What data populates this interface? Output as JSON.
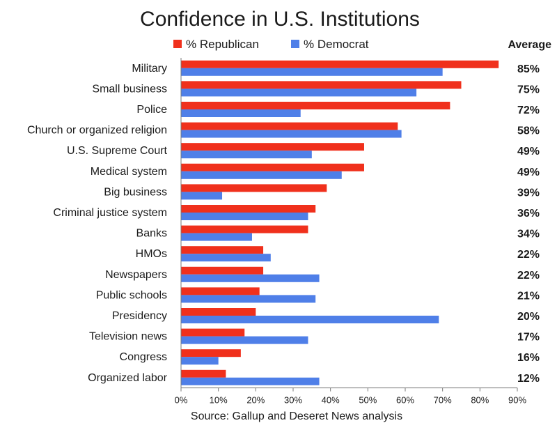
{
  "chart_data": {
    "type": "bar",
    "orientation": "horizontal",
    "title": "Confidence in U.S. Institutions",
    "categories": [
      "Military",
      "Small business",
      "Police",
      "Church or organized religion",
      "U.S. Supreme Court",
      "Medical system",
      "Big business",
      "Criminal justice system",
      "Banks",
      "HMOs",
      "Newspapers",
      "Public schools",
      "Presidency",
      "Television news",
      "Congress",
      "Organized labor"
    ],
    "series": [
      {
        "name": "% Republican",
        "color": "#f0301c",
        "values": [
          85,
          75,
          72,
          58,
          49,
          49,
          39,
          36,
          34,
          22,
          22,
          21,
          20,
          17,
          16,
          12
        ]
      },
      {
        "name": "% Democrat",
        "color": "#4f7fe8",
        "values": [
          70,
          63,
          32,
          59,
          35,
          43,
          11,
          34,
          19,
          24,
          37,
          36,
          69,
          34,
          10,
          37
        ]
      }
    ],
    "average_header": "Average",
    "averages": [
      "85%",
      "75%",
      "72%",
      "58%",
      "49%",
      "49%",
      "39%",
      "36%",
      "34%",
      "22%",
      "22%",
      "21%",
      "20%",
      "17%",
      "16%",
      "12%"
    ],
    "xlim": [
      0,
      90
    ],
    "xticks": [
      "0%",
      "10%",
      "20%",
      "30%",
      "40%",
      "50%",
      "60%",
      "70%",
      "80%",
      "90%"
    ],
    "xlabel": "Source: Gallup and Deseret News analysis",
    "ylabel": "",
    "legend_position": "top",
    "grid": false
  }
}
